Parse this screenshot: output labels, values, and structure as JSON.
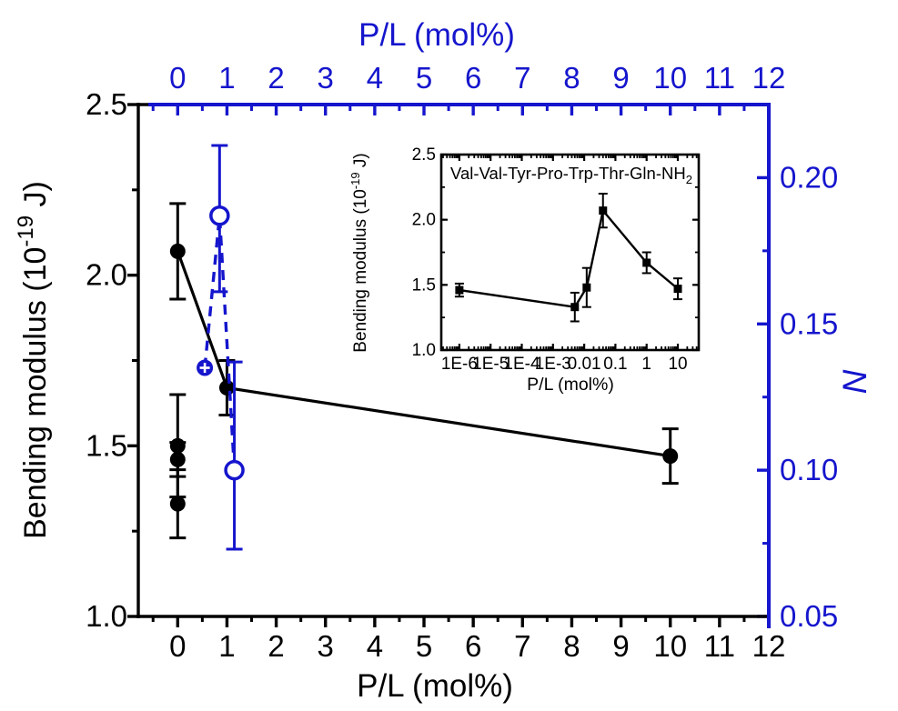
{
  "colors": {
    "blue": "#1515cd",
    "black": "#000000",
    "background": "#ffffff"
  },
  "chart_data": [
    {
      "id": "main",
      "type": "scatter-line",
      "grid": false,
      "legend": "none",
      "bottom_axis": {
        "label": "P/L (mol%)",
        "range": [
          -0.8,
          12
        ],
        "major_ticks": [
          0,
          1,
          2,
          3,
          4,
          5,
          6,
          7,
          8,
          9,
          10,
          11,
          12
        ],
        "tick_labels": [
          "0",
          "1",
          "2",
          "3",
          "4",
          "5",
          "6",
          "7",
          "8",
          "9",
          "10",
          "11",
          "12"
        ],
        "minor_step": 0.5
      },
      "top_axis": {
        "label": "P/L (mol%)",
        "range": [
          -0.8,
          12
        ],
        "major_ticks": [
          0,
          1,
          2,
          3,
          4,
          5,
          6,
          7,
          8,
          9,
          10,
          11,
          12
        ],
        "tick_labels": [
          "0",
          "1",
          "2",
          "3",
          "4",
          "5",
          "6",
          "7",
          "8",
          "9",
          "10",
          "11",
          "12"
        ],
        "minor_step": 0.5
      },
      "left_axis": {
        "label_prefix": "Bending modulus (10",
        "label_sup": "-19",
        "label_suffix": " J)",
        "range": [
          1.0,
          2.5
        ],
        "major_ticks": [
          1.0,
          1.5,
          2.0,
          2.5
        ],
        "tick_labels": [
          "1.0",
          "1.5",
          "2.0",
          "2.5"
        ],
        "minor_step": 0.25
      },
      "right_axis": {
        "label": "N",
        "color": "#1515cd",
        "range": [
          0.05,
          0.225
        ],
        "major_ticks": [
          0.05,
          0.1,
          0.15,
          0.2
        ],
        "tick_labels": [
          "0.05",
          "0.10",
          "0.15",
          "0.20"
        ],
        "minor_step": 0.025
      },
      "series": [
        {
          "name": "bending-modulus-black",
          "axis": "left",
          "color": "#000000",
          "marker": "filled-circle",
          "line_style": "solid",
          "points": [
            {
              "x": 0,
              "y": 2.07,
              "err": 0.14,
              "on_line": true
            },
            {
              "x": 0,
              "y": 1.5,
              "err": 0.15
            },
            {
              "x": 0,
              "y": 1.46,
              "err": 0.05
            },
            {
              "x": 0,
              "y": 1.33,
              "err": 0.1
            },
            {
              "x": 1,
              "y": 1.67,
              "err": 0.08,
              "on_line": true
            },
            {
              "x": 10,
              "y": 1.47,
              "err": 0.08,
              "on_line": true
            }
          ]
        },
        {
          "name": "number-of-peptides-blue",
          "axis": "right",
          "color": "#1515cd",
          "marker": "open-circle",
          "line_style": "dashed",
          "points": [
            {
              "x": 0.55,
              "y": 0.135,
              "marker": "circle-plus",
              "on_line": true
            },
            {
              "x": 0.85,
              "y": 0.187,
              "err_up": 0.024,
              "err_down": 0.026,
              "on_line": true
            },
            {
              "x": 1.15,
              "y": 0.1,
              "err_up": 0.037,
              "err_down": 0.027,
              "on_line": true
            }
          ]
        }
      ]
    },
    {
      "id": "inset",
      "type": "scatter-line",
      "title_main": "Val-Val-Tyr-Pro-Trp-Thr-Gln-NH",
      "title_sub": "2",
      "x_axis": {
        "label": "P/L (mol%)",
        "scale": "log",
        "range_log": [
          -6.58,
          1.67
        ],
        "major_ticks": [
          1e-06,
          1e-05,
          0.0001,
          0.001,
          0.01,
          0.1,
          1,
          10
        ],
        "tick_labels": [
          "1E-6",
          "1E-5",
          "1E-4",
          "1E-3",
          "0.01",
          "0.1",
          "1",
          "10"
        ]
      },
      "y_axis": {
        "label_prefix": "Bending modulus (10",
        "label_sup": "-19",
        "label_suffix": " J)",
        "range": [
          1.0,
          2.5
        ],
        "major_ticks": [
          1.0,
          1.5,
          2.0,
          2.5
        ],
        "tick_labels": [
          "1.0",
          "1.5",
          "2.0",
          "2.5"
        ],
        "minor_step": 0.25
      },
      "series": [
        {
          "name": "bending-modulus-log",
          "color": "#000000",
          "marker": "filled-square",
          "line_style": "solid",
          "points": [
            {
              "x": 1e-06,
              "y": 1.46,
              "err": 0.05
            },
            {
              "x": 0.005,
              "y": 1.33,
              "err": 0.11
            },
            {
              "x": 0.012,
              "y": 1.48,
              "err": 0.15
            },
            {
              "x": 0.04,
              "y": 2.07,
              "err": 0.13
            },
            {
              "x": 1,
              "y": 1.67,
              "err": 0.08
            },
            {
              "x": 10,
              "y": 1.47,
              "err": 0.08
            }
          ]
        }
      ]
    }
  ]
}
